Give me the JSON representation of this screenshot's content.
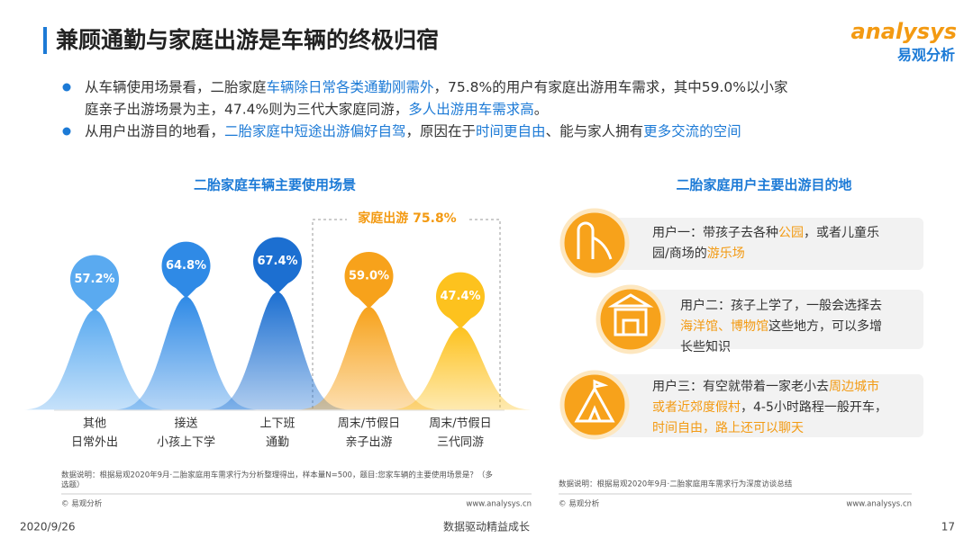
{
  "header": {
    "title": "兼顾通勤与家庭出游是车辆的终极归宿",
    "logo": "analysys",
    "logo_sub": "易观分析"
  },
  "bullets": [
    [
      [
        "从车辆使用场景看，二胎家庭",
        {
          "text": "车辆除日常各类通勤刚需外",
          "color": "#1c7ad6"
        },
        "，75.8%的用户有家庭出游用车需求，其中59.0%以小家"
      ],
      [
        "庭亲子出游场景为主，47.4%则为三代大家庭同游，",
        {
          "text": "多人出游用车需求高",
          "color": "#1c7ad6"
        },
        "。"
      ]
    ],
    [
      [
        "从用户出游目的地看，",
        {
          "text": "二胎家庭中短途出游偏好自驾",
          "color": "#1c7ad6"
        },
        "，原因在于",
        {
          "text": "时间更自由",
          "color": "#1c7ad6"
        },
        "、能与家人拥有",
        {
          "text": "更多交流的空间",
          "color": "#1c7ad6"
        }
      ]
    ]
  ],
  "chart_data": {
    "type": "bell",
    "title": "二胎家庭车辆主要使用场景",
    "categories": [
      [
        "其他",
        "日常外出"
      ],
      [
        "接送",
        "小孩上下学"
      ],
      [
        "上下班",
        "通勤"
      ],
      [
        "周末/节假日",
        "亲子出游"
      ],
      [
        "周末/节假日",
        "三代同游"
      ]
    ],
    "values": [
      57.2,
      64.8,
      67.4,
      59.0,
      47.4
    ],
    "value_labels": [
      "57.2%",
      "64.8%",
      "67.4%",
      "59.0%",
      "47.4%"
    ],
    "colors": [
      "#5aaaf0",
      "#2f8ae6",
      "#1c6fd1",
      "#f7a21b",
      "#fdc21e"
    ],
    "annotation": "家庭出游  75.8%"
  },
  "right": {
    "title": "二胎家庭用户主要出游目的地",
    "items": [
      [
        [
          "用户一：带孩子去各种",
          {
            "text": "公园",
            "color": "#f39a12"
          },
          "，或者儿童乐"
        ],
        [
          "园/商场的",
          {
            "text": "游乐场",
            "color": "#f39a12"
          }
        ]
      ],
      [
        [
          "用户二：孩子上学了，一般会选择去"
        ],
        [
          {
            "text": "海洋馆、博物馆",
            "color": "#f39a12"
          },
          "这些地方，可以多增"
        ],
        [
          "长些知识"
        ]
      ],
      [
        [
          "用户三：有空就带着一家老小去",
          {
            "text": "周边城市",
            "color": "#f39a12"
          }
        ],
        [
          {
            "text": "或者近郊度假村",
            "color": "#f39a12"
          },
          "，4-5小时路程一般开车，"
        ],
        [
          {
            "text": "时间自由，路上还可以聊天",
            "color": "#f39a12"
          }
        ]
      ]
    ]
  },
  "notes": {
    "left": [
      "数据说明：根据易观2020年9月·二胎家庭用车需求行为分析整理得出，样本量N=500，题目:您家车辆的主要使用场景是？（多",
      "选题）"
    ],
    "right": "数据说明：根据易观2020年9月·二胎家庭用车需求行为深度访谈总结",
    "copyright": "© 易观分析",
    "site": "www.analysys.cn"
  },
  "footer": {
    "date": "2020/9/26",
    "slogan": "数据驱动精益成长",
    "page": "17"
  }
}
